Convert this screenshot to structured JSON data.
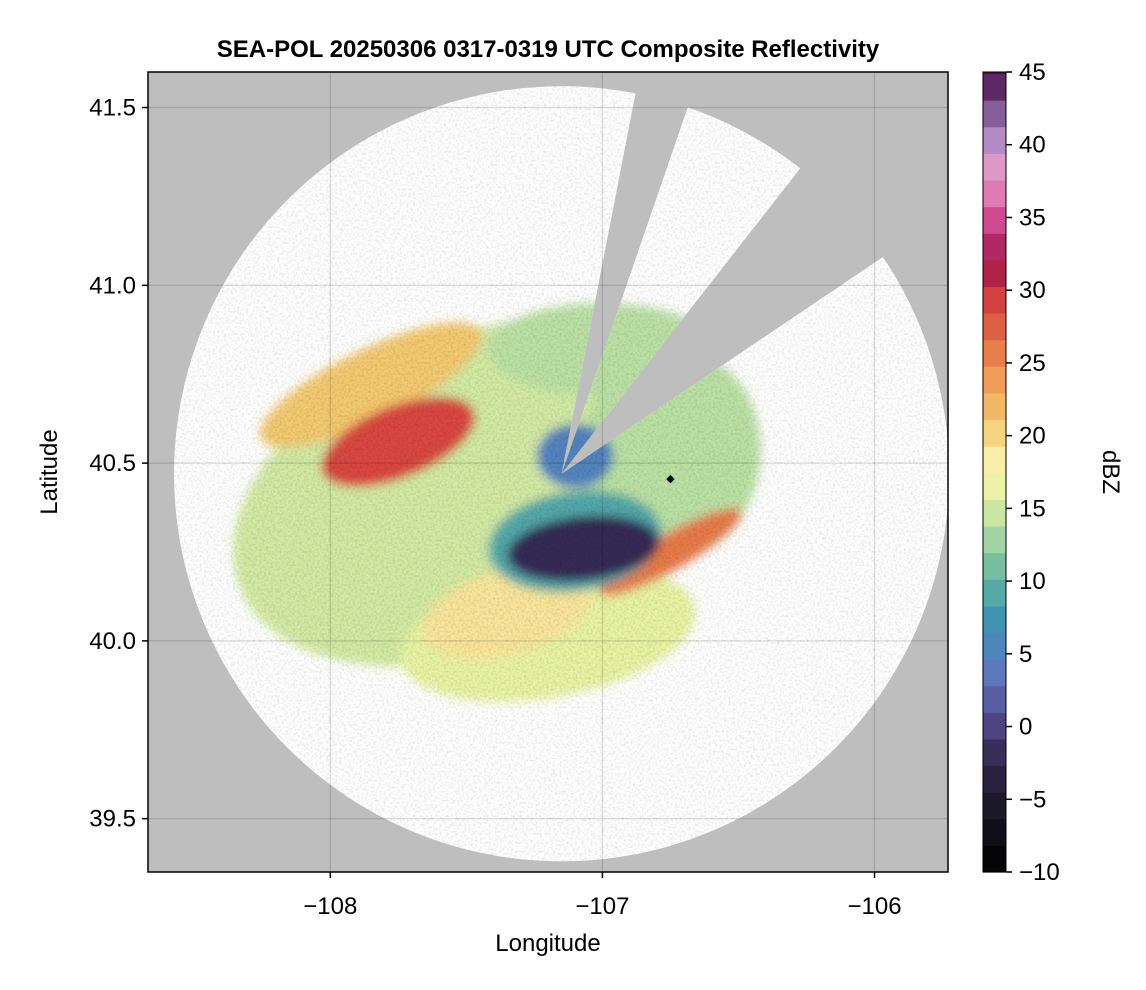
{
  "chart_data": {
    "type": "heatmap",
    "title": "SEA-POL 20250306 0317-0319 UTC Composite Reflectivity",
    "xlabel": "Longitude",
    "ylabel": "Latitude",
    "xlim": [
      -108.67,
      -105.73
    ],
    "ylim": [
      39.35,
      41.6
    ],
    "x_ticks": [
      {
        "value": -108,
        "label": "−108"
      },
      {
        "value": -107,
        "label": "−107"
      },
      {
        "value": -106,
        "label": "−106"
      }
    ],
    "y_ticks": [
      {
        "value": 39.5,
        "label": "39.5"
      },
      {
        "value": 40.0,
        "label": "40.0"
      },
      {
        "value": 40.5,
        "label": "40.5"
      },
      {
        "value": 41.0,
        "label": "41.0"
      },
      {
        "value": 41.5,
        "label": "41.5"
      }
    ],
    "grid": true,
    "background_color": "#bebebe",
    "no_echo_color": "#ffffff",
    "radar": {
      "center": [
        -107.15,
        40.47
      ],
      "max_range_lat_deg": 1.09,
      "blocked_sectors": [
        {
          "from_deg": 11,
          "to_deg": 19
        },
        {
          "from_deg": 38,
          "to_deg": 56
        }
      ],
      "site_marker": {
        "lon": -106.75,
        "lat": 40.455,
        "color": "#000000"
      }
    },
    "colorbar": {
      "label": "dBZ",
      "min": -10,
      "max": 45,
      "step": 1.83,
      "ticks": [
        {
          "value": -10,
          "label": "−10"
        },
        {
          "value": -5,
          "label": "−5"
        },
        {
          "value": 0,
          "label": "0"
        },
        {
          "value": 5,
          "label": "5"
        },
        {
          "value": 10,
          "label": "10"
        },
        {
          "value": 15,
          "label": "15"
        },
        {
          "value": 20,
          "label": "20"
        },
        {
          "value": 25,
          "label": "25"
        },
        {
          "value": 30,
          "label": "30"
        },
        {
          "value": 35,
          "label": "35"
        },
        {
          "value": 40,
          "label": "40"
        },
        {
          "value": 45,
          "label": "45"
        }
      ],
      "color_stops": [
        {
          "dbz": -10,
          "color": "#000000"
        },
        {
          "dbz": -5,
          "color": "#1d1a2c"
        },
        {
          "dbz": -2,
          "color": "#342c55"
        },
        {
          "dbz": 1,
          "color": "#584f94"
        },
        {
          "dbz": 4,
          "color": "#5d7dc0"
        },
        {
          "dbz": 7,
          "color": "#3f8fb6"
        },
        {
          "dbz": 10,
          "color": "#5db3a2"
        },
        {
          "dbz": 13,
          "color": "#a4d6a4"
        },
        {
          "dbz": 16,
          "color": "#e7f3a3"
        },
        {
          "dbz": 18,
          "color": "#faf4b0"
        },
        {
          "dbz": 21,
          "color": "#f3c86f"
        },
        {
          "dbz": 25,
          "color": "#ec8a4c"
        },
        {
          "dbz": 29,
          "color": "#d8463f"
        },
        {
          "dbz": 32,
          "color": "#a1154b"
        },
        {
          "dbz": 35,
          "color": "#d34d96"
        },
        {
          "dbz": 38,
          "color": "#e89ecb"
        },
        {
          "dbz": 41,
          "color": "#a585c1"
        },
        {
          "dbz": 43,
          "color": "#70427d"
        },
        {
          "dbz": 45,
          "color": "#4a0e49"
        }
      ]
    },
    "echo_regions": [
      {
        "name": "wide light echo",
        "lon": -107.45,
        "lat": 40.42,
        "radius_lon": 0.95,
        "radius_lat": 0.44,
        "rotation_deg": -22,
        "dbz": 15
      },
      {
        "name": "north band",
        "lon": -107.0,
        "lat": 40.82,
        "radius_lon": 0.42,
        "radius_lat": 0.13,
        "rotation_deg": 0,
        "dbz": 14
      },
      {
        "name": "east light echo",
        "lon": -106.75,
        "lat": 40.52,
        "radius_lon": 0.33,
        "radius_lat": 0.3,
        "rotation_deg": 10,
        "dbz": 14
      },
      {
        "name": "southern lobe",
        "lon": -107.2,
        "lat": 40.02,
        "radius_lon": 0.55,
        "radius_lat": 0.18,
        "rotation_deg": -10,
        "dbz": 16
      },
      {
        "name": "northwest band",
        "lon": -107.85,
        "lat": 40.72,
        "radius_lon": 0.45,
        "radius_lat": 0.1,
        "rotation_deg": -26,
        "dbz": 21
      },
      {
        "name": "northwest core",
        "lon": -107.75,
        "lat": 40.56,
        "radius_lon": 0.3,
        "radius_lat": 0.1,
        "rotation_deg": -22,
        "dbz": 29
      },
      {
        "name": "south-central patch",
        "lon": -107.35,
        "lat": 40.08,
        "radius_lon": 0.32,
        "radius_lat": 0.12,
        "rotation_deg": -15,
        "dbz": 19
      },
      {
        "name": "southeast band",
        "lon": -106.75,
        "lat": 40.25,
        "radius_lon": 0.3,
        "radius_lat": 0.05,
        "rotation_deg": -30,
        "dbz": 26
      },
      {
        "name": "central ring",
        "lon": -107.1,
        "lat": 40.28,
        "radius_lon": 0.32,
        "radius_lat": 0.14,
        "rotation_deg": -8,
        "dbz": 9
      },
      {
        "name": "near-radar ring",
        "lon": -107.1,
        "lat": 40.52,
        "radius_lon": 0.14,
        "radius_lat": 0.09,
        "rotation_deg": 0,
        "dbz": 5
      },
      {
        "name": "central dark blob",
        "lon": -107.07,
        "lat": 40.26,
        "radius_lon": 0.28,
        "radius_lat": 0.09,
        "rotation_deg": -6,
        "dbz": -2
      }
    ]
  }
}
